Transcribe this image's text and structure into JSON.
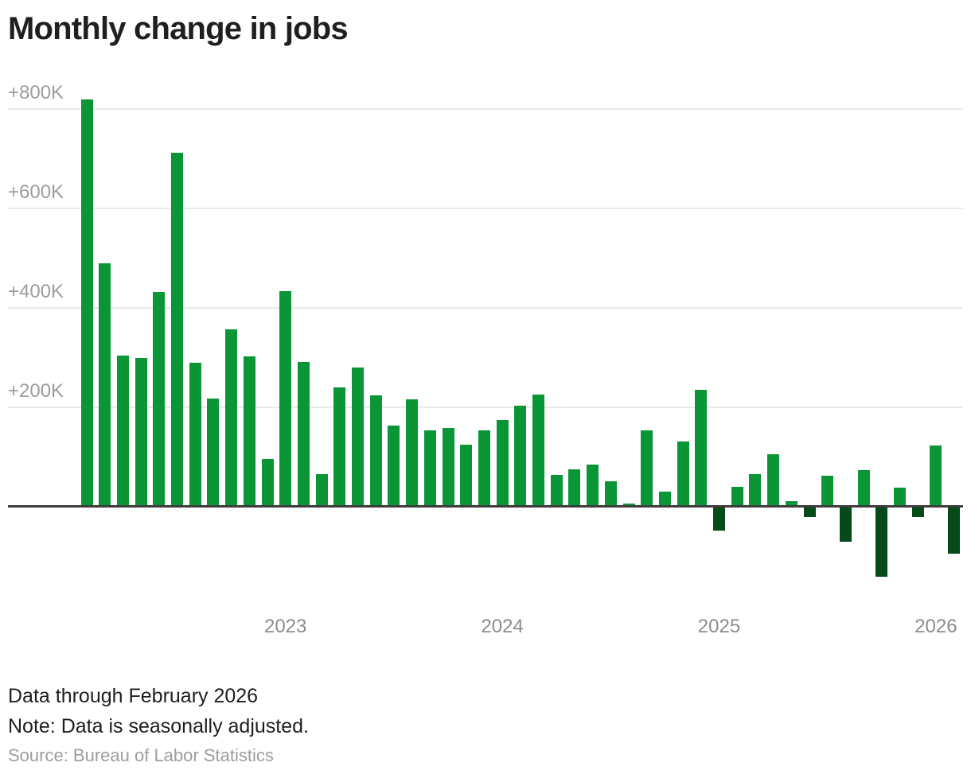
{
  "header": {
    "title": "Monthly change in jobs"
  },
  "chart_data": {
    "type": "bar",
    "title": "Monthly change in jobs",
    "unit": "thousands of jobs (K)",
    "x": [
      "Feb 2022",
      "Mar 2022",
      "Apr 2022",
      "May 2022",
      "Jun 2022",
      "Jul 2022",
      "Aug 2022",
      "Sep 2022",
      "Oct 2022",
      "Nov 2022",
      "Dec 2022",
      "Jan 2023",
      "Feb 2023",
      "Mar 2023",
      "Apr 2023",
      "May 2023",
      "Jun 2023",
      "Jul 2023",
      "Aug 2023",
      "Sep 2023",
      "Oct 2023",
      "Nov 2023",
      "Dec 2023",
      "Jan 2024",
      "Feb 2024",
      "Mar 2024",
      "Apr 2024",
      "May 2024",
      "Jun 2024",
      "Jul 2024",
      "Aug 2024",
      "Sep 2024",
      "Oct 2024",
      "Nov 2024",
      "Dec 2024",
      "Jan 2025",
      "Feb 2025",
      "Mar 2025",
      "Apr 2025",
      "May 2025",
      "Jun 2025",
      "Jul 2025",
      "Aug 2025",
      "Sep 2025",
      "Oct 2025",
      "Nov 2025",
      "Dec 2025",
      "Jan 2026",
      "Feb 2026"
    ],
    "values": [
      820,
      490,
      305,
      300,
      432,
      712,
      290,
      218,
      357,
      302,
      96,
      434,
      292,
      66,
      240,
      280,
      224,
      163,
      217,
      154,
      158,
      125,
      153,
      174,
      204,
      226,
      64,
      76,
      85,
      51,
      7,
      154,
      31,
      132,
      236,
      -48,
      40,
      66,
      106,
      11,
      -21,
      62,
      -71,
      73,
      -141,
      39,
      -21,
      123,
      -94
    ],
    "y_ticks": [
      {
        "label": "+800K",
        "value": 800
      },
      {
        "label": "+600K",
        "value": 600
      },
      {
        "label": "+400K",
        "value": 400
      },
      {
        "label": "+200K",
        "value": 200
      }
    ],
    "x_ticks": [
      {
        "label": "2023",
        "at": "Jan 2023"
      },
      {
        "label": "2024",
        "at": "Jan 2024"
      },
      {
        "label": "2025",
        "at": "Jan 2025"
      },
      {
        "label": "2026",
        "at": "Jan 2026"
      }
    ],
    "ylim": [
      -160,
      840
    ],
    "grid": true,
    "legend": null,
    "colors": {
      "positive": "#0a9636",
      "negative": "#064a19",
      "axis": "#3d3d3d",
      "gridline": "#e9e9e9"
    }
  },
  "footer": {
    "line1": "Data through February 2026",
    "line2": "Note: Data is seasonally adjusted.",
    "source": "Source: Bureau of Labor Statistics"
  }
}
